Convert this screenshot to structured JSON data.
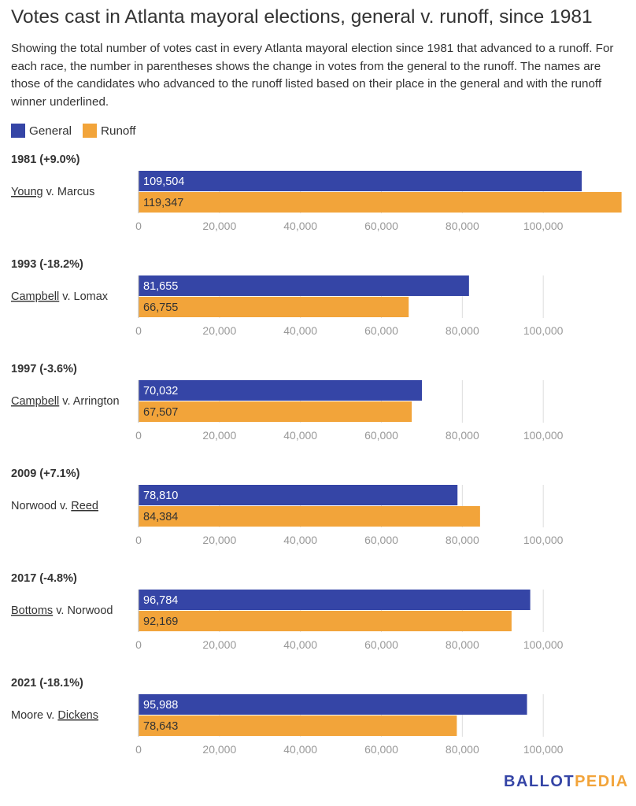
{
  "title": "Votes cast in Atlanta mayoral elections, general v. runoff, since 1981",
  "subtitle": "Showing the total number of votes cast in every Atlanta mayoral election since 1981 that advanced to a runoff. For each race, the number in parentheses shows the change in votes from the general to the runoff. The names are those of the candidates who advanced to the runoff listed based on their place in the general and with the runoff winner underlined.",
  "legend": [
    {
      "label": "General",
      "color": "#3545a6"
    },
    {
      "label": "Runoff",
      "color": "#f2a43a"
    }
  ],
  "colors": {
    "general": "#3545a6",
    "runoff": "#f2a43a",
    "grid": "#dddddd",
    "tick_text": "#999999"
  },
  "footer": {
    "part1": "BALLOT",
    "part2": "PEDIA",
    "color1": "#3545a6",
    "color2": "#f2a43a"
  },
  "chart_data": {
    "type": "bar",
    "orientation": "horizontal",
    "xlim": [
      0,
      120000
    ],
    "ticks": [
      0,
      20000,
      40000,
      60000,
      80000,
      100000
    ],
    "tick_labels": [
      "0",
      "20,000",
      "40,000",
      "60,000",
      "80,000",
      "100,000"
    ],
    "series_names": [
      "General",
      "Runoff"
    ],
    "panels": [
      {
        "header": "1981 (+9.0%)",
        "candidates": [
          {
            "name": "Young",
            "underline": true
          },
          {
            "name": " v. ",
            "underline": false
          },
          {
            "name": "Marcus",
            "underline": false
          }
        ],
        "general": 109504,
        "runoff": 119347,
        "general_label": "109,504",
        "runoff_label": "119,347"
      },
      {
        "header": "1993 (-18.2%)",
        "candidates": [
          {
            "name": "Campbell",
            "underline": true
          },
          {
            "name": " v. ",
            "underline": false
          },
          {
            "name": "Lomax",
            "underline": false
          }
        ],
        "general": 81655,
        "runoff": 66755,
        "general_label": "81,655",
        "runoff_label": "66,755"
      },
      {
        "header": "1997 (-3.6%)",
        "candidates": [
          {
            "name": "Campbell",
            "underline": true
          },
          {
            "name": " v. ",
            "underline": false
          },
          {
            "name": "Arrington",
            "underline": false
          }
        ],
        "general": 70032,
        "runoff": 67507,
        "general_label": "70,032",
        "runoff_label": "67,507"
      },
      {
        "header": "2009 (+7.1%)",
        "candidates": [
          {
            "name": "Norwood",
            "underline": false
          },
          {
            "name": " v. ",
            "underline": false
          },
          {
            "name": "Reed",
            "underline": true
          }
        ],
        "general": 78810,
        "runoff": 84384,
        "general_label": "78,810",
        "runoff_label": "84,384"
      },
      {
        "header": "2017 (-4.8%)",
        "candidates": [
          {
            "name": "Bottoms",
            "underline": true
          },
          {
            "name": " v. ",
            "underline": false
          },
          {
            "name": "Norwood",
            "underline": false
          }
        ],
        "general": 96784,
        "runoff": 92169,
        "general_label": "96,784",
        "runoff_label": "92,169"
      },
      {
        "header": "2021 (-18.1%)",
        "candidates": [
          {
            "name": "Moore",
            "underline": false
          },
          {
            "name": " v. ",
            "underline": false
          },
          {
            "name": "Dickens",
            "underline": true
          }
        ],
        "general": 95988,
        "runoff": 78643,
        "general_label": "95,988",
        "runoff_label": "78,643"
      }
    ]
  }
}
